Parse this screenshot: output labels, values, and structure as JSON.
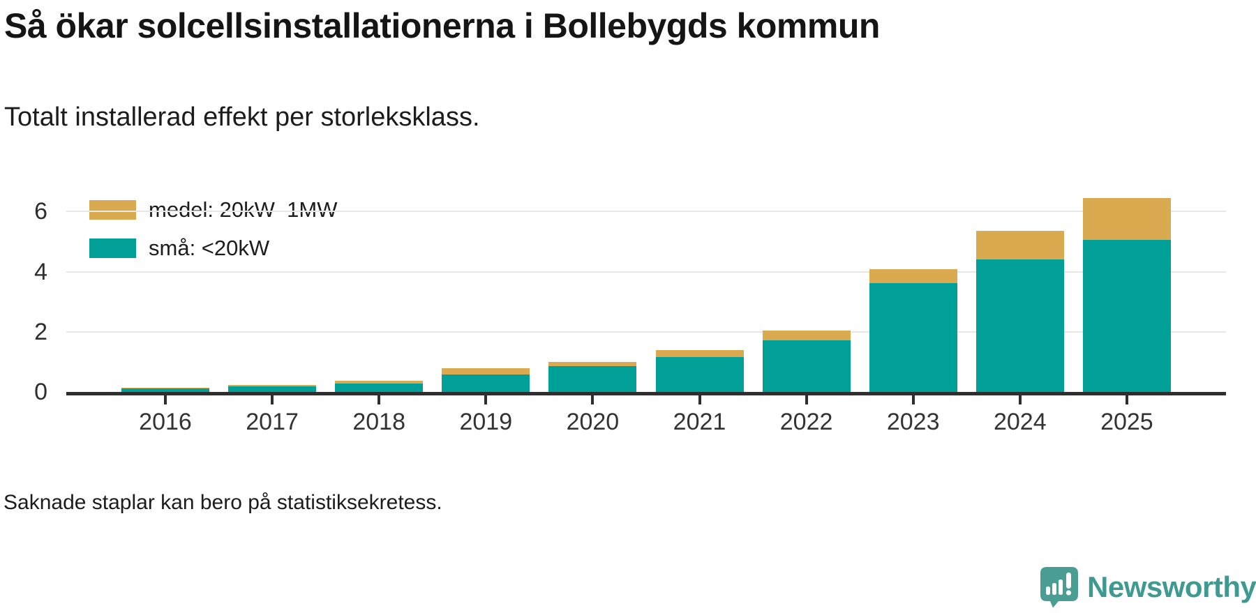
{
  "header": {
    "title": "Så ökar solcellsinstallationerna i Bollebygds kommun",
    "subtitle": "Totalt installerad effekt per storleksklass."
  },
  "chart_data": {
    "type": "bar",
    "stacked": true,
    "title": "Så ökar solcellsinstallationerna i Bollebygds kommun",
    "subtitle": "Totalt installerad effekt per storleksklass.",
    "xlabel": "",
    "ylabel": "",
    "categories": [
      "2016",
      "2017",
      "2018",
      "2019",
      "2020",
      "2021",
      "2022",
      "2023",
      "2024",
      "2025"
    ],
    "series": [
      {
        "name": "medel: 20kW–1MW",
        "color": "#D9AA50",
        "values": [
          0.03,
          0.05,
          0.1,
          0.22,
          0.15,
          0.25,
          0.33,
          0.46,
          0.95,
          1.38
        ]
      },
      {
        "name": "små: <20kW",
        "color": "#00A098",
        "values": [
          0.12,
          0.18,
          0.28,
          0.58,
          0.86,
          1.15,
          1.71,
          3.62,
          4.4,
          5.06
        ]
      }
    ],
    "stack_order_bottom_to_top": [
      "små: <20kW",
      "medel: 20kW–1MW"
    ],
    "yticks": [
      0,
      2,
      4,
      6
    ],
    "ylim": [
      0,
      6.9
    ],
    "grid": true,
    "legend_position": "top-left"
  },
  "legend": {
    "items": [
      {
        "label": "medel: 20kW–1MW",
        "color": "#D9AA50"
      },
      {
        "label": "små: <20kW",
        "color": "#00A098"
      }
    ]
  },
  "footer": {
    "note": "Saknade staplar kan bero på statistiksekretess.",
    "brand": "Newsworthy"
  },
  "icons": {
    "brand_icon": "speech-bubble-with-bar-chart-and-exclamation"
  },
  "colors": {
    "bar_sma": "#00A098",
    "bar_medel": "#D9AA50",
    "brand_text": "#3E9A90",
    "brand_icon": "#4A9D93",
    "gridline": "#E7E7E7",
    "axis": "#2E2E2E",
    "title_text": "#151515"
  }
}
